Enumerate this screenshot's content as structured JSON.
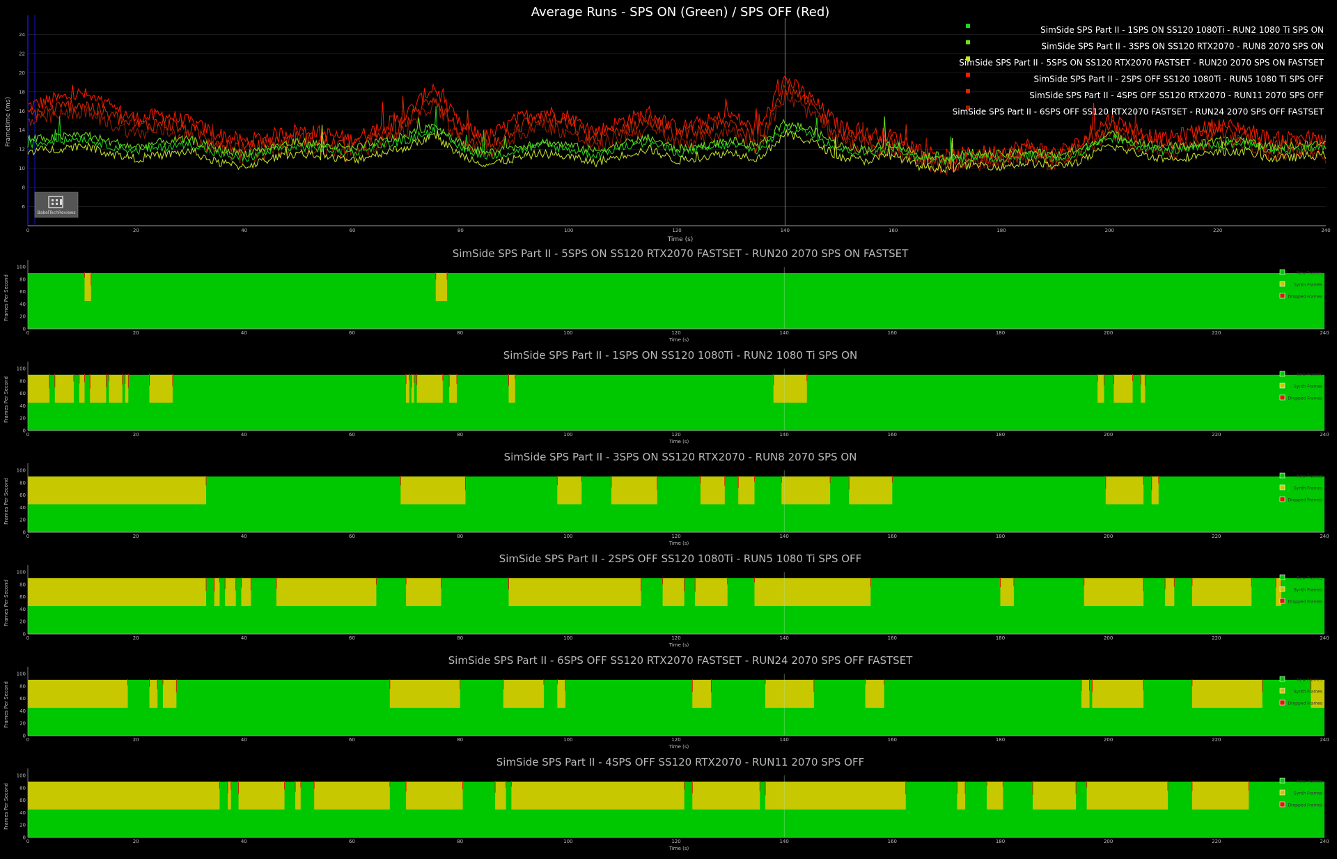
{
  "colors": {
    "background": "#000000",
    "new_frames": "#00c800",
    "synth_frames": "#c8c800",
    "dropped_frames": "#d22000",
    "sps_on_series": [
      "#1fd81f",
      "#6fe020",
      "#c7e62a"
    ],
    "sps_off_series": [
      "#ff1a00",
      "#d42a00",
      "#a01c00"
    ]
  },
  "watermark": {
    "text": "BabelTechReviews",
    "icon": "building-icon"
  },
  "chart_data": [
    {
      "type": "line",
      "title": "Average Runs - SPS ON (Green) / SPS OFF (Red)",
      "xlabel": "Time (s)",
      "ylabel": "Frametime (ms)",
      "xlim": [
        0,
        240
      ],
      "ylim": [
        4,
        26
      ],
      "x_ticks": [
        0,
        20,
        40,
        60,
        80,
        100,
        120,
        140,
        160,
        180,
        200,
        220,
        240
      ],
      "y_ticks": [
        6,
        8,
        10,
        12,
        14,
        16,
        18,
        20,
        22,
        24
      ],
      "grid": true,
      "legend_position": "top-right",
      "marker_x": 140,
      "x": [
        0,
        5,
        10,
        15,
        20,
        25,
        30,
        35,
        40,
        45,
        50,
        55,
        60,
        65,
        70,
        75,
        80,
        85,
        90,
        95,
        100,
        105,
        110,
        115,
        120,
        125,
        130,
        135,
        140,
        145,
        150,
        155,
        160,
        165,
        170,
        175,
        180,
        185,
        190,
        195,
        200,
        205,
        210,
        215,
        220,
        225,
        230,
        235,
        240
      ],
      "series": [
        {
          "name": "SimSide SPS Part II - 1SPS ON SS120 1080Ti - RUN2 1080 Ti SPS ON",
          "group": "on",
          "values": [
            12.5,
            12.8,
            13.2,
            12.4,
            11.8,
            12.2,
            12.6,
            11.5,
            11.0,
            11.8,
            12.3,
            12.0,
            11.6,
            12.4,
            12.9,
            14.0,
            12.2,
            11.2,
            11.8,
            12.4,
            12.0,
            11.4,
            12.2,
            12.8,
            11.6,
            12.0,
            12.5,
            11.8,
            14.2,
            13.6,
            12.0,
            11.6,
            12.2,
            11.0,
            10.8,
            11.2,
            11.0,
            11.4,
            11.0,
            11.6,
            13.2,
            12.4,
            11.8,
            12.0,
            12.4,
            12.6,
            11.8,
            12.0,
            12.2
          ]
        },
        {
          "name": "SimSide SPS Part II - 3SPS ON SS120 RTX2070 - RUN8 2070 SPS ON",
          "group": "on",
          "values": [
            13.0,
            13.2,
            13.6,
            12.8,
            12.2,
            12.8,
            13.0,
            12.0,
            11.6,
            12.2,
            12.8,
            12.4,
            12.0,
            12.8,
            13.4,
            14.6,
            12.6,
            11.6,
            12.2,
            12.8,
            12.4,
            11.8,
            12.6,
            13.2,
            12.0,
            12.4,
            12.9,
            12.2,
            14.8,
            14.0,
            12.4,
            12.0,
            12.6,
            11.4,
            11.2,
            11.6,
            11.4,
            11.8,
            11.4,
            12.0,
            13.6,
            12.8,
            12.2,
            12.4,
            12.8,
            13.0,
            12.2,
            12.4,
            12.6
          ]
        },
        {
          "name": "SimSide SPS Part II - 5SPS ON SS120 RTX2070 FASTSET - RUN20 2070 SPS ON FASTSET",
          "group": "on",
          "values": [
            11.8,
            12.0,
            12.4,
            11.6,
            11.0,
            11.4,
            11.8,
            10.6,
            10.2,
            11.0,
            11.6,
            11.2,
            10.8,
            11.6,
            12.2,
            13.4,
            11.4,
            10.4,
            11.0,
            11.6,
            11.2,
            10.6,
            11.4,
            12.0,
            10.8,
            11.2,
            11.7,
            11.0,
            13.6,
            12.8,
            11.2,
            10.8,
            11.4,
            10.2,
            10.0,
            10.4,
            10.2,
            10.6,
            10.2,
            10.8,
            12.4,
            11.6,
            11.0,
            11.2,
            11.6,
            11.8,
            11.0,
            11.2,
            11.4
          ]
        },
        {
          "name": "SimSide SPS Part II - 2SPS OFF SS120 1080Ti - RUN5 1080 Ti SPS OFF",
          "group": "off",
          "values": [
            16.5,
            17.2,
            17.8,
            16.4,
            15.2,
            15.6,
            14.8,
            13.6,
            12.8,
            13.4,
            14.0,
            13.6,
            13.0,
            14.2,
            15.6,
            18.6,
            14.4,
            13.2,
            15.0,
            16.0,
            15.4,
            13.8,
            15.0,
            15.8,
            14.2,
            14.8,
            15.6,
            13.8,
            19.4,
            17.2,
            14.4,
            13.6,
            13.4,
            12.0,
            11.2,
            11.6,
            11.8,
            12.4,
            11.6,
            12.8,
            15.2,
            14.0,
            13.0,
            13.8,
            14.6,
            14.2,
            13.0,
            13.4,
            12.8
          ]
        },
        {
          "name": "SimSide SPS Part II - 4SPS OFF SS120 RTX2070 - RUN11 2070 SPS OFF",
          "group": "off",
          "values": [
            15.6,
            16.2,
            16.8,
            15.6,
            14.4,
            14.8,
            14.0,
            12.8,
            12.0,
            12.6,
            13.2,
            12.8,
            12.2,
            13.4,
            14.8,
            17.6,
            13.6,
            12.4,
            14.2,
            15.2,
            14.6,
            13.0,
            14.2,
            15.0,
            13.4,
            14.0,
            14.8,
            13.0,
            18.4,
            16.4,
            13.6,
            12.8,
            12.6,
            11.2,
            10.6,
            11.0,
            11.2,
            11.8,
            11.0,
            12.2,
            14.4,
            13.2,
            12.2,
            13.0,
            13.8,
            13.4,
            12.2,
            12.6,
            12.0
          ]
        },
        {
          "name": "SimSide SPS Part II - 6SPS OFF SS120 RTX2070 FASTSET - RUN24 2070 SPS OFF FASTSET",
          "group": "off",
          "values": [
            14.8,
            15.4,
            16.0,
            14.8,
            13.6,
            14.0,
            13.2,
            12.0,
            11.2,
            11.8,
            12.4,
            12.0,
            11.4,
            12.6,
            14.0,
            16.8,
            12.8,
            11.6,
            13.4,
            14.4,
            13.8,
            12.2,
            13.4,
            14.2,
            12.6,
            13.2,
            14.0,
            12.2,
            17.6,
            15.6,
            12.8,
            12.0,
            11.8,
            10.6,
            10.0,
            10.4,
            10.6,
            11.2,
            10.4,
            11.6,
            13.6,
            12.4,
            11.4,
            12.2,
            13.0,
            12.6,
            11.4,
            11.8,
            11.2
          ]
        }
      ]
    },
    {
      "type": "area",
      "title": "SimSide SPS Part II - 5SPS ON SS120 RTX2070 FASTSET - RUN20 2070 SPS ON FASTSET",
      "xlabel": "Time (s)",
      "ylabel": "Frames Per Second",
      "xlim": [
        0,
        240
      ],
      "ylim": [
        0,
        100
      ],
      "x_ticks": [
        0,
        20,
        40,
        60,
        80,
        100,
        120,
        140,
        160,
        180,
        200,
        220,
        240
      ],
      "y_ticks": [
        0,
        20,
        40,
        60,
        80,
        100
      ],
      "legend": [
        "New Frames",
        "Synth Frames",
        "Dropped Frames"
      ],
      "legend_position": "right",
      "fps_total": 90,
      "synth_split": 45,
      "synth_intervals": [
        [
          10.5,
          11.7
        ],
        [
          75.5,
          77.6
        ]
      ]
    },
    {
      "type": "area",
      "title": "SimSide SPS Part II - 1SPS ON SS120 1080Ti - RUN2 1080 Ti SPS ON",
      "xlabel": "Time (s)",
      "ylabel": "Frames Per Second",
      "xlim": [
        0,
        240
      ],
      "ylim": [
        0,
        100
      ],
      "x_ticks": [
        0,
        20,
        40,
        60,
        80,
        100,
        120,
        140,
        160,
        180,
        200,
        220,
        240
      ],
      "y_ticks": [
        0,
        20,
        40,
        60,
        80,
        100
      ],
      "legend": [
        "New Frames",
        "Synth Frames",
        "Dropped Frames"
      ],
      "legend_position": "right",
      "fps_total": 90,
      "synth_split": 45,
      "synth_intervals": [
        [
          0,
          4
        ],
        [
          5,
          8.5
        ],
        [
          9.5,
          10.5
        ],
        [
          11.5,
          14.5
        ],
        [
          15,
          17.5
        ],
        [
          18,
          18.6
        ],
        [
          22.5,
          26.8
        ],
        [
          70,
          70.6
        ],
        [
          71,
          71.5
        ],
        [
          72,
          76.8
        ],
        [
          78,
          79.4
        ],
        [
          89,
          90.2
        ],
        [
          138,
          144.2
        ],
        [
          198,
          199.2
        ],
        [
          201,
          204.5
        ],
        [
          206,
          206.8
        ]
      ]
    },
    {
      "type": "area",
      "title": "SimSide SPS Part II - 3SPS ON SS120 RTX2070 - RUN8 2070 SPS ON",
      "xlabel": "Time (s)",
      "ylabel": "Frames Per Second",
      "xlim": [
        0,
        240
      ],
      "ylim": [
        0,
        100
      ],
      "x_ticks": [
        0,
        20,
        40,
        60,
        80,
        100,
        120,
        140,
        160,
        180,
        200,
        220,
        240
      ],
      "y_ticks": [
        0,
        20,
        40,
        60,
        80,
        100
      ],
      "legend": [
        "New Frames",
        "Synth Frames",
        "Dropped Frames"
      ],
      "legend_position": "right",
      "fps_total": 90,
      "synth_split": 45,
      "synth_intervals": [
        [
          0,
          33
        ],
        [
          69,
          81
        ],
        [
          98,
          102.5
        ],
        [
          108,
          116.5
        ],
        [
          124.5,
          129
        ],
        [
          131.5,
          134.5
        ],
        [
          139.5,
          148.5
        ],
        [
          152,
          160
        ],
        [
          199.5,
          206.5
        ],
        [
          208,
          209.3
        ]
      ]
    },
    {
      "type": "area",
      "title": "SimSide SPS Part II - 2SPS OFF SS120 1080Ti - RUN5 1080 Ti SPS OFF",
      "xlabel": "Time (s)",
      "ylabel": "Frames Per Second",
      "xlim": [
        0,
        240
      ],
      "ylim": [
        0,
        100
      ],
      "x_ticks": [
        0,
        20,
        40,
        60,
        80,
        100,
        120,
        140,
        160,
        180,
        200,
        220,
        240
      ],
      "y_ticks": [
        0,
        20,
        40,
        60,
        80,
        100
      ],
      "legend": [
        "New Frames",
        "Synth Frames",
        "Dropped Frames"
      ],
      "legend_position": "right",
      "fps_total": 90,
      "synth_split": 45,
      "synth_intervals": [
        [
          0,
          33
        ],
        [
          34.5,
          35.5
        ],
        [
          36.5,
          38.5
        ],
        [
          39.5,
          41.3
        ],
        [
          46,
          64.5
        ],
        [
          70,
          76.5
        ],
        [
          89,
          113.5
        ],
        [
          117.5,
          121.5
        ],
        [
          123.5,
          129.5
        ],
        [
          134.5,
          156
        ],
        [
          180,
          182.5
        ],
        [
          195.5,
          206.5
        ],
        [
          210.5,
          212.2
        ],
        [
          215.5,
          226.5
        ],
        [
          231,
          232
        ]
      ]
    },
    {
      "type": "area",
      "title": "SimSide SPS Part II - 6SPS OFF SS120 RTX2070 FASTSET - RUN24 2070 SPS OFF FASTSET",
      "xlabel": "Time (s)",
      "ylabel": "Frames Per Second",
      "xlim": [
        0,
        240
      ],
      "ylim": [
        0,
        100
      ],
      "x_ticks": [
        0,
        20,
        40,
        60,
        80,
        100,
        120,
        140,
        160,
        180,
        200,
        220,
        240
      ],
      "y_ticks": [
        0,
        20,
        40,
        60,
        80,
        100
      ],
      "legend": [
        "New Frames",
        "Synth Frames",
        "Dropped Frames"
      ],
      "legend_position": "right",
      "fps_total": 90,
      "synth_split": 45,
      "synth_intervals": [
        [
          0,
          18.5
        ],
        [
          22.5,
          24
        ],
        [
          25,
          27.5
        ],
        [
          67,
          80
        ],
        [
          88,
          95.5
        ],
        [
          98,
          99.5
        ],
        [
          123,
          126.5
        ],
        [
          136.5,
          145.5
        ],
        [
          155,
          158.5
        ],
        [
          195,
          196.5
        ],
        [
          197,
          206.5
        ],
        [
          215.5,
          228.5
        ],
        [
          237.5,
          240
        ]
      ]
    },
    {
      "type": "area",
      "title": "SimSide SPS Part II - 4SPS OFF SS120 RTX2070 - RUN11 2070 SPS OFF",
      "xlabel": "Time (s)",
      "ylabel": "Frames Per Second",
      "xlim": [
        0,
        240
      ],
      "ylim": [
        0,
        100
      ],
      "x_ticks": [
        0,
        20,
        40,
        60,
        80,
        100,
        120,
        140,
        160,
        180,
        200,
        220,
        240
      ],
      "y_ticks": [
        0,
        20,
        40,
        60,
        80,
        100
      ],
      "legend": [
        "New Frames",
        "Synth Frames",
        "Dropped Frames"
      ],
      "legend_position": "right",
      "fps_total": 90,
      "synth_split": 45,
      "synth_intervals": [
        [
          0,
          35.5
        ],
        [
          37,
          37.6
        ],
        [
          39,
          47.5
        ],
        [
          49.5,
          50.5
        ],
        [
          53,
          67
        ],
        [
          70,
          80.5
        ],
        [
          86.5,
          88.5
        ],
        [
          89.5,
          121.5
        ],
        [
          123,
          135.5
        ],
        [
          136.5,
          162.5
        ],
        [
          172,
          173.5
        ],
        [
          177.5,
          180.5
        ],
        [
          186,
          194
        ],
        [
          196,
          211
        ],
        [
          215.5,
          226
        ]
      ]
    }
  ]
}
